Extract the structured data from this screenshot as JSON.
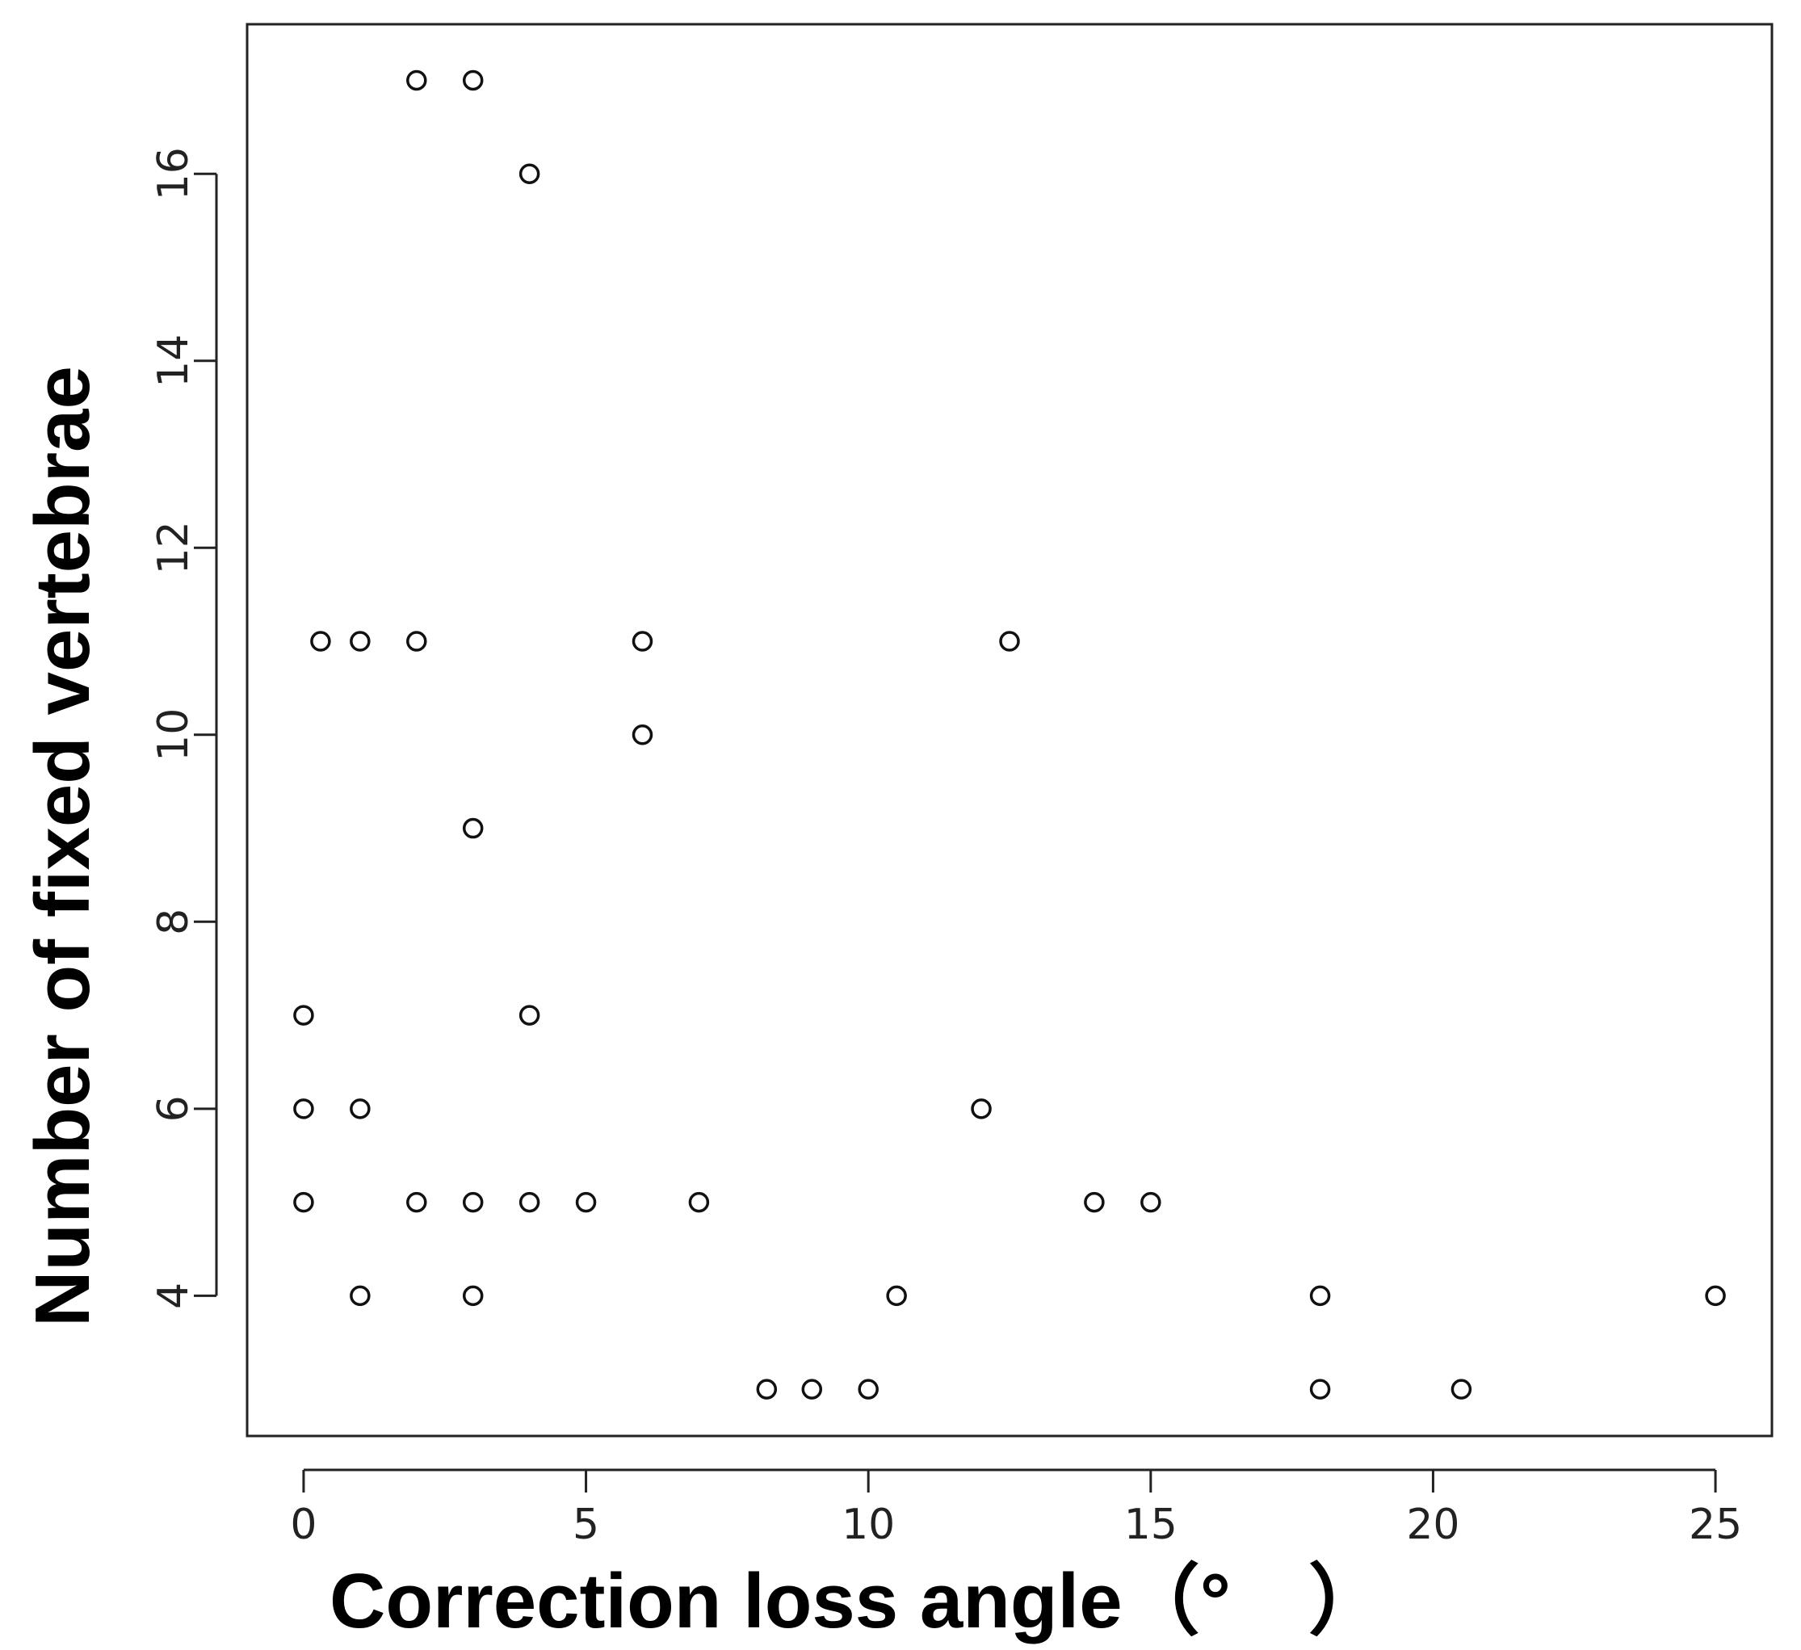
{
  "chart_data": {
    "type": "scatter",
    "title": "",
    "xlabel": "Correction loss angle（°　）",
    "ylabel": "Number of fixed vertebrae",
    "xlim": [
      -1,
      26
    ],
    "ylim": [
      2.5,
      17.6
    ],
    "xticks": [
      0,
      5,
      10,
      15,
      20,
      25
    ],
    "yticks": [
      4,
      6,
      8,
      10,
      12,
      14,
      16
    ],
    "xtick_labels": [
      "0",
      "5",
      "10",
      "15",
      "20",
      "25"
    ],
    "ytick_labels": [
      "4",
      "6",
      "8",
      "10",
      "12",
      "14",
      "16"
    ],
    "grid": false,
    "marker": "open-circle",
    "points": [
      {
        "x": 2,
        "y": 17
      },
      {
        "x": 3,
        "y": 17
      },
      {
        "x": 4,
        "y": 16
      },
      {
        "x": 0.3,
        "y": 11
      },
      {
        "x": 1,
        "y": 11
      },
      {
        "x": 2,
        "y": 11
      },
      {
        "x": 6,
        "y": 11
      },
      {
        "x": 12.5,
        "y": 11
      },
      {
        "x": 6,
        "y": 10
      },
      {
        "x": 3,
        "y": 9
      },
      {
        "x": 0,
        "y": 7
      },
      {
        "x": 4,
        "y": 7
      },
      {
        "x": 0,
        "y": 6
      },
      {
        "x": 1,
        "y": 6
      },
      {
        "x": 12,
        "y": 6
      },
      {
        "x": 0,
        "y": 5
      },
      {
        "x": 2,
        "y": 5
      },
      {
        "x": 3,
        "y": 5
      },
      {
        "x": 4,
        "y": 5
      },
      {
        "x": 5,
        "y": 5
      },
      {
        "x": 7,
        "y": 5
      },
      {
        "x": 14,
        "y": 5
      },
      {
        "x": 15,
        "y": 5
      },
      {
        "x": 1,
        "y": 4
      },
      {
        "x": 3,
        "y": 4
      },
      {
        "x": 10.5,
        "y": 4
      },
      {
        "x": 18,
        "y": 4
      },
      {
        "x": 25,
        "y": 4
      },
      {
        "x": 8.2,
        "y": 3
      },
      {
        "x": 9,
        "y": 3
      },
      {
        "x": 10,
        "y": 3
      },
      {
        "x": 18,
        "y": 3
      },
      {
        "x": 20.5,
        "y": 3
      }
    ]
  }
}
